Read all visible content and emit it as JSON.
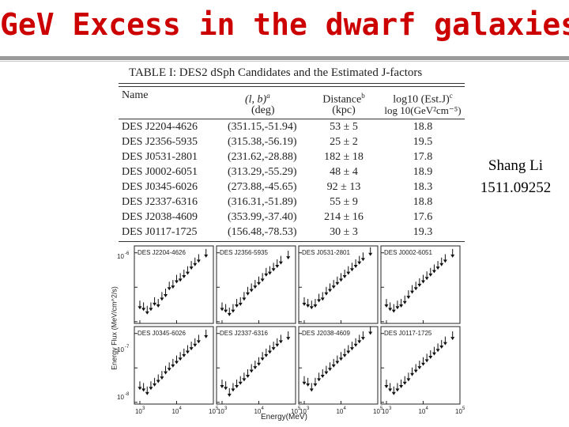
{
  "slide": {
    "title": "GeV Excess in the dwarf galaxies?",
    "credit_line1": "Shang Li",
    "credit_line2": "1511.09252"
  },
  "table": {
    "caption": "TABLE I: DES2 dSph Candidates and the Estimated J-factors",
    "headers": {
      "name": "Name",
      "lb": "(l, b)",
      "lb_sup": "a",
      "lb_unit": "(deg)",
      "dist": "Distance",
      "dist_sup": "b",
      "dist_unit": "(kpc)",
      "j": "log10 (Est.J)",
      "j_sup": "c",
      "j_unit": "log 10(GeV²cm⁻⁵)"
    },
    "rows": [
      {
        "name": "DES J2204-4626",
        "lb": "(351.15,-51.94)",
        "dist": "53 ± 5",
        "j": "18.8"
      },
      {
        "name": "DES J2356-5935",
        "lb": "(315.38,-56.19)",
        "dist": "25 ± 2",
        "j": "19.5"
      },
      {
        "name": "DES J0531-2801",
        "lb": "(231.62,-28.88)",
        "dist": "182 ± 18",
        "j": "17.8"
      },
      {
        "name": "DES J0002-6051",
        "lb": "(313.29,-55.29)",
        "dist": "48 ± 4",
        "j": "18.9"
      },
      {
        "name": "DES J0345-6026",
        "lb": "(273.88,-45.65)",
        "dist": "92 ± 13",
        "j": "18.3"
      },
      {
        "name": "DES J2337-6316",
        "lb": "(316.31,-51.89)",
        "dist": "55 ± 9",
        "j": "18.8"
      },
      {
        "name": "DES J2038-4609",
        "lb": "(353.99,-37.40)",
        "dist": "214 ± 16",
        "j": "17.6"
      },
      {
        "name": "DES J0117-1725",
        "lb": "(156.48,-78.53)",
        "dist": "30 ± 3",
        "j": "19.3"
      }
    ]
  },
  "plots": {
    "ylabel": "Energy Flux (MeV/cm^2/s)",
    "xlabel": "Energy(MeV)",
    "ytick_labels": [
      "10",
      "10",
      "10"
    ],
    "ytick_exps": [
      "-6",
      "-7",
      "-8"
    ],
    "xtick_labels": [
      "10",
      "10",
      "10"
    ],
    "xtick_exps": [
      "3",
      "4",
      "5"
    ],
    "panels": [
      {
        "name": "DES J2204-4626",
        "points": [
          [
            3.0,
            -7.55
          ],
          [
            3.1,
            -7.6
          ],
          [
            3.2,
            -7.7
          ],
          [
            3.3,
            -7.6
          ],
          [
            3.4,
            -7.45
          ],
          [
            3.5,
            -7.5
          ],
          [
            3.6,
            -7.3
          ],
          [
            3.7,
            -7.2
          ],
          [
            3.8,
            -7.0
          ],
          [
            3.9,
            -6.95
          ],
          [
            4.0,
            -6.8
          ],
          [
            4.1,
            -6.75
          ],
          [
            4.2,
            -6.65
          ],
          [
            4.3,
            -6.55
          ],
          [
            4.4,
            -6.4
          ],
          [
            4.5,
            -6.3
          ],
          [
            4.6,
            -6.2
          ],
          [
            4.8,
            -6.05
          ]
        ]
      },
      {
        "name": "DES J2356-5935",
        "points": [
          [
            3.0,
            -7.6
          ],
          [
            3.1,
            -7.65
          ],
          [
            3.2,
            -7.75
          ],
          [
            3.3,
            -7.65
          ],
          [
            3.4,
            -7.5
          ],
          [
            3.5,
            -7.45
          ],
          [
            3.6,
            -7.3
          ],
          [
            3.7,
            -7.15
          ],
          [
            3.8,
            -7.05
          ],
          [
            3.9,
            -6.95
          ],
          [
            4.0,
            -6.85
          ],
          [
            4.1,
            -6.75
          ],
          [
            4.2,
            -6.6
          ],
          [
            4.3,
            -6.55
          ],
          [
            4.4,
            -6.45
          ],
          [
            4.5,
            -6.35
          ],
          [
            4.6,
            -6.25
          ],
          [
            4.8,
            -6.1
          ]
        ]
      },
      {
        "name": "DES J0531-2801",
        "points": [
          [
            3.0,
            -7.45
          ],
          [
            3.1,
            -7.5
          ],
          [
            3.2,
            -7.55
          ],
          [
            3.3,
            -7.5
          ],
          [
            3.4,
            -7.35
          ],
          [
            3.5,
            -7.3
          ],
          [
            3.6,
            -7.15
          ],
          [
            3.7,
            -7.05
          ],
          [
            3.8,
            -6.95
          ],
          [
            3.9,
            -6.85
          ],
          [
            4.0,
            -6.75
          ],
          [
            4.1,
            -6.65
          ],
          [
            4.2,
            -6.55
          ],
          [
            4.3,
            -6.45
          ],
          [
            4.4,
            -6.35
          ],
          [
            4.5,
            -6.25
          ],
          [
            4.6,
            -6.15
          ],
          [
            4.8,
            -6.0
          ]
        ]
      },
      {
        "name": "DES J0002-6051",
        "points": [
          [
            3.0,
            -7.5
          ],
          [
            3.1,
            -7.6
          ],
          [
            3.2,
            -7.65
          ],
          [
            3.3,
            -7.55
          ],
          [
            3.4,
            -7.5
          ],
          [
            3.5,
            -7.4
          ],
          [
            3.6,
            -7.25
          ],
          [
            3.7,
            -7.1
          ],
          [
            3.8,
            -7.0
          ],
          [
            3.9,
            -6.9
          ],
          [
            4.0,
            -6.8
          ],
          [
            4.1,
            -6.7
          ],
          [
            4.2,
            -6.6
          ],
          [
            4.3,
            -6.5
          ],
          [
            4.4,
            -6.4
          ],
          [
            4.5,
            -6.3
          ],
          [
            4.6,
            -6.2
          ],
          [
            4.8,
            -6.05
          ]
        ]
      },
      {
        "name": "DES J0345-6026",
        "points": [
          [
            3.0,
            -7.55
          ],
          [
            3.1,
            -7.6
          ],
          [
            3.2,
            -7.7
          ],
          [
            3.3,
            -7.55
          ],
          [
            3.4,
            -7.45
          ],
          [
            3.5,
            -7.35
          ],
          [
            3.6,
            -7.25
          ],
          [
            3.7,
            -7.1
          ],
          [
            3.8,
            -7.0
          ],
          [
            3.9,
            -6.9
          ],
          [
            4.0,
            -6.8
          ],
          [
            4.1,
            -6.7
          ],
          [
            4.2,
            -6.6
          ],
          [
            4.3,
            -6.5
          ],
          [
            4.4,
            -6.4
          ],
          [
            4.5,
            -6.3
          ],
          [
            4.6,
            -6.2
          ],
          [
            4.8,
            -6.05
          ]
        ]
      },
      {
        "name": "DES J2337-6316",
        "points": [
          [
            3.0,
            -7.5
          ],
          [
            3.1,
            -7.55
          ],
          [
            3.2,
            -7.75
          ],
          [
            3.3,
            -7.6
          ],
          [
            3.4,
            -7.5
          ],
          [
            3.5,
            -7.4
          ],
          [
            3.6,
            -7.3
          ],
          [
            3.7,
            -7.2
          ],
          [
            3.8,
            -7.05
          ],
          [
            3.9,
            -6.95
          ],
          [
            4.0,
            -6.85
          ],
          [
            4.1,
            -6.7
          ],
          [
            4.2,
            -6.6
          ],
          [
            4.3,
            -6.5
          ],
          [
            4.4,
            -6.4
          ],
          [
            4.5,
            -6.3
          ],
          [
            4.6,
            -6.2
          ],
          [
            4.8,
            -6.1
          ]
        ]
      },
      {
        "name": "DES J2038-4609",
        "points": [
          [
            3.0,
            -7.4
          ],
          [
            3.1,
            -7.45
          ],
          [
            3.2,
            -7.6
          ],
          [
            3.3,
            -7.45
          ],
          [
            3.4,
            -7.3
          ],
          [
            3.5,
            -7.2
          ],
          [
            3.6,
            -7.1
          ],
          [
            3.7,
            -7.0
          ],
          [
            3.8,
            -6.9
          ],
          [
            3.9,
            -6.8
          ],
          [
            4.0,
            -6.7
          ],
          [
            4.1,
            -6.6
          ],
          [
            4.2,
            -6.5
          ],
          [
            4.3,
            -6.4
          ],
          [
            4.4,
            -6.3
          ],
          [
            4.5,
            -6.2
          ],
          [
            4.6,
            -6.1
          ],
          [
            4.8,
            -5.95
          ]
        ]
      },
      {
        "name": "DES J0117-1725",
        "points": [
          [
            3.0,
            -7.5
          ],
          [
            3.1,
            -7.6
          ],
          [
            3.2,
            -7.7
          ],
          [
            3.3,
            -7.6
          ],
          [
            3.4,
            -7.5
          ],
          [
            3.5,
            -7.4
          ],
          [
            3.6,
            -7.3
          ],
          [
            3.7,
            -7.15
          ],
          [
            3.8,
            -7.05
          ],
          [
            3.9,
            -6.95
          ],
          [
            4.0,
            -6.85
          ],
          [
            4.1,
            -6.75
          ],
          [
            4.2,
            -6.65
          ],
          [
            4.3,
            -6.55
          ],
          [
            4.4,
            -6.45
          ],
          [
            4.5,
            -6.35
          ],
          [
            4.6,
            -6.25
          ],
          [
            4.8,
            -6.1
          ]
        ]
      }
    ]
  },
  "colors": {
    "title": "#cc0000",
    "rule": "#9a9a9a"
  }
}
